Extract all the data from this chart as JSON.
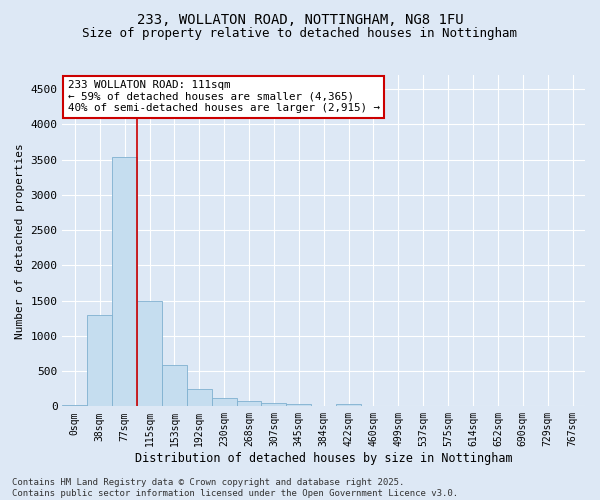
{
  "title_line1": "233, WOLLATON ROAD, NOTTINGHAM, NG8 1FU",
  "title_line2": "Size of property relative to detached houses in Nottingham",
  "xlabel": "Distribution of detached houses by size in Nottingham",
  "ylabel": "Number of detached properties",
  "bar_labels": [
    "0sqm",
    "38sqm",
    "77sqm",
    "115sqm",
    "153sqm",
    "192sqm",
    "230sqm",
    "268sqm",
    "307sqm",
    "345sqm",
    "384sqm",
    "422sqm",
    "460sqm",
    "499sqm",
    "537sqm",
    "575sqm",
    "614sqm",
    "652sqm",
    "690sqm",
    "729sqm",
    "767sqm"
  ],
  "bar_values": [
    20,
    1290,
    3540,
    1490,
    590,
    250,
    120,
    70,
    45,
    30,
    0,
    30,
    0,
    0,
    0,
    0,
    0,
    0,
    0,
    0,
    0
  ],
  "bar_color": "#c5ddef",
  "bar_edge_color": "#7fb0d0",
  "ylim": [
    0,
    4700
  ],
  "yticks": [
    0,
    500,
    1000,
    1500,
    2000,
    2500,
    3000,
    3500,
    4000,
    4500
  ],
  "vline_x": 2.5,
  "vline_color": "#cc0000",
  "annotation_text": "233 WOLLATON ROAD: 111sqm\n← 59% of detached houses are smaller (4,365)\n40% of semi-detached houses are larger (2,915) →",
  "annotation_box_color": "#ffffff",
  "annotation_box_edge": "#cc0000",
  "footer_line1": "Contains HM Land Registry data © Crown copyright and database right 2025.",
  "footer_line2": "Contains public sector information licensed under the Open Government Licence v3.0.",
  "bg_color": "#dde8f5",
  "plot_bg_color": "#dde8f5",
  "grid_color": "#ffffff",
  "title1_fontsize": 10,
  "title2_fontsize": 9
}
